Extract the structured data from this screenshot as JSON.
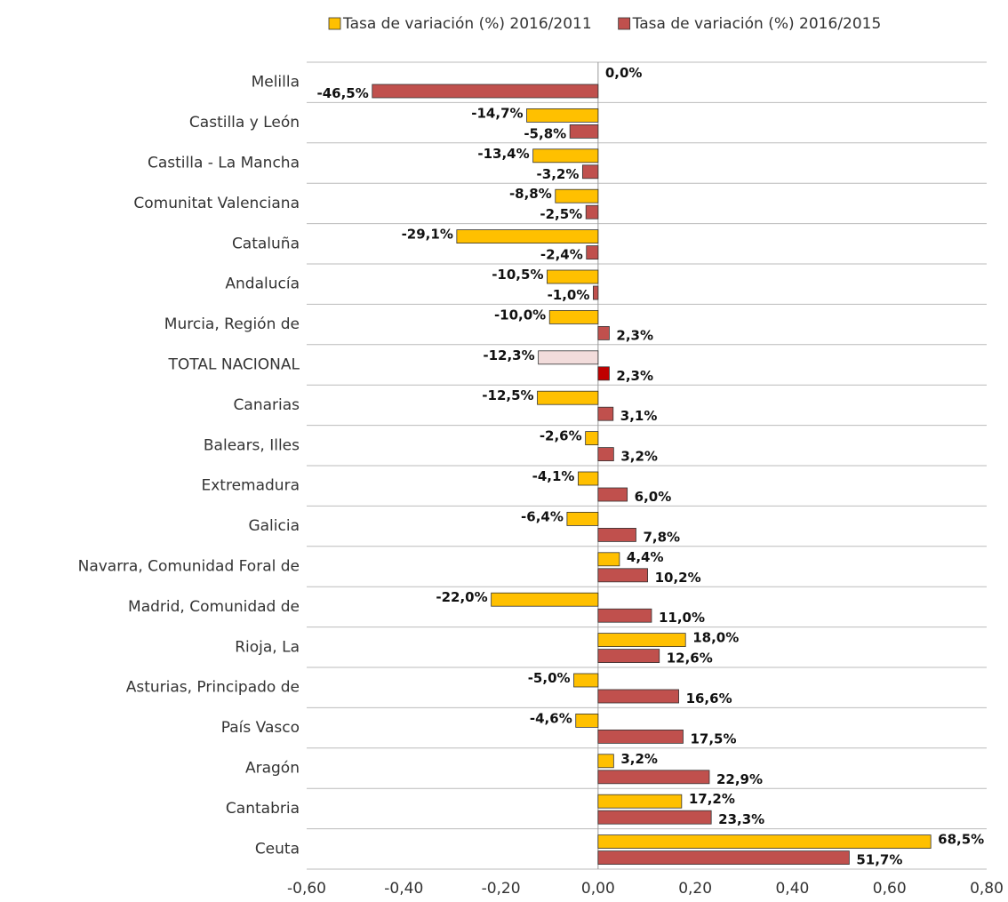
{
  "chart_data": {
    "type": "hbar",
    "categories": [
      "Melilla",
      "Castilla y León",
      "Castilla - La Mancha",
      "Comunitat Valenciana",
      "Cataluña",
      "Andalucía",
      "Murcia, Región de",
      "TOTAL NACIONAL",
      "Canarias",
      "Balears, Illes",
      "Extremadura",
      "Galicia",
      "Navarra, Comunidad Foral de",
      "Madrid, Comunidad de",
      "Rioja, La",
      "Asturias, Principado de",
      "País Vasco",
      "Aragón",
      "Cantabria",
      "Ceuta"
    ],
    "series": [
      {
        "name": "Tasa de variación (%) 2016/2011",
        "color": "#FFC000",
        "colors": [
          "#FFC000",
          "#FFC000",
          "#FFC000",
          "#FFC000",
          "#FFC000",
          "#FFC000",
          "#FFC000",
          "#F2DCDB",
          "#FFC000",
          "#FFC000",
          "#FFC000",
          "#FFC000",
          "#FFC000",
          "#FFC000",
          "#FFC000",
          "#FFC000",
          "#FFC000",
          "#FFC000",
          "#FFC000",
          "#FFC000"
        ],
        "values": [
          0.0,
          -0.147,
          -0.134,
          -0.088,
          -0.291,
          -0.105,
          -0.1,
          -0.123,
          -0.125,
          -0.026,
          -0.041,
          -0.064,
          0.044,
          -0.22,
          0.18,
          -0.05,
          -0.046,
          0.032,
          0.172,
          0.685
        ],
        "value_labels": [
          "0,0%",
          "-14,7%",
          "-13,4%",
          "-8,8%",
          "-29,1%",
          "-10,5%",
          "-10,0%",
          "-12,3%",
          "-12,5%",
          "-2,6%",
          "-4,1%",
          "-6,4%",
          "4,4%",
          "-22,0%",
          "18,0%",
          "-5,0%",
          "-4,6%",
          "3,2%",
          "17,2%",
          "68,5%"
        ]
      },
      {
        "name": "Tasa de variación (%) 2016/2015",
        "color": "#C0504D",
        "colors": [
          "#C0504D",
          "#C0504D",
          "#C0504D",
          "#C0504D",
          "#C0504D",
          "#C0504D",
          "#C0504D",
          "#C00000",
          "#C0504D",
          "#C0504D",
          "#C0504D",
          "#C0504D",
          "#C0504D",
          "#C0504D",
          "#C0504D",
          "#C0504D",
          "#C0504D",
          "#C0504D",
          "#C0504D",
          "#C0504D"
        ],
        "values": [
          -0.465,
          -0.058,
          -0.032,
          -0.025,
          -0.024,
          -0.01,
          0.023,
          0.023,
          0.031,
          0.032,
          0.06,
          0.078,
          0.102,
          0.11,
          0.126,
          0.166,
          0.175,
          0.229,
          0.233,
          0.517
        ],
        "value_labels": [
          "-46,5%",
          "-5,8%",
          "-3,2%",
          "-2,5%",
          "-2,4%",
          "-1,0%",
          "2,3%",
          "2,3%",
          "3,1%",
          "3,2%",
          "6,0%",
          "7,8%",
          "10,2%",
          "11,0%",
          "12,6%",
          "16,6%",
          "17,5%",
          "22,9%",
          "23,3%",
          "51,7%"
        ]
      }
    ],
    "xlim": [
      -0.6,
      0.8
    ],
    "xticks": [
      {
        "value": -0.6,
        "label": "-0,60"
      },
      {
        "value": -0.4,
        "label": "-0,40"
      },
      {
        "value": -0.2,
        "label": "-0,20"
      },
      {
        "value": 0,
        "label": "0,00"
      },
      {
        "value": 0.2,
        "label": "0,20"
      },
      {
        "value": 0.4,
        "label": "0,40"
      },
      {
        "value": 0.6,
        "label": "0,60"
      },
      {
        "value": 0.8,
        "label": "0,80"
      }
    ],
    "legend": "top"
  }
}
